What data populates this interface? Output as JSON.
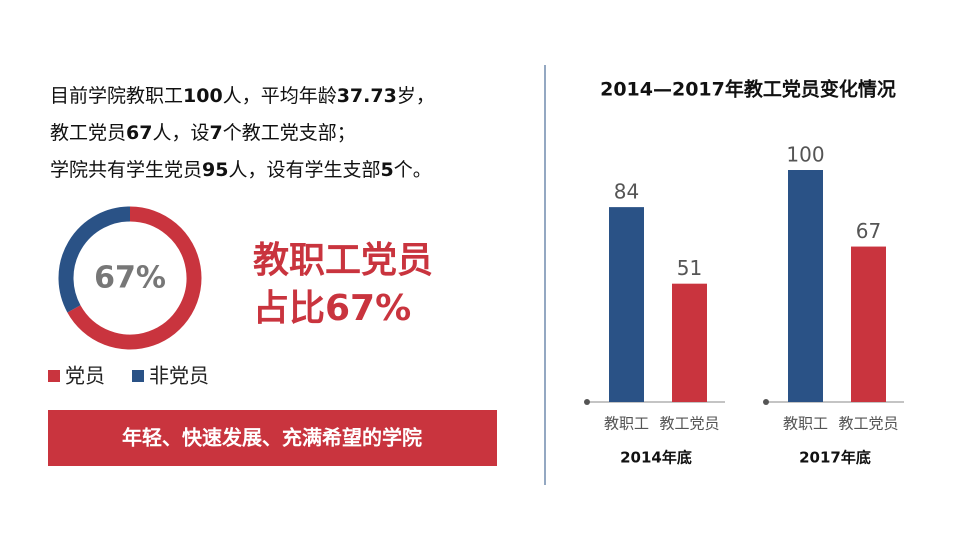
{
  "intro": [
    [
      "目前学院教职工",
      "100",
      "人，平均年龄",
      "37.73",
      "岁，"
    ],
    [
      "教工党员",
      "67",
      "人，设",
      "7",
      "个教工党支部；"
    ],
    [
      "学院共有学生党员",
      "95",
      "人，设有学生支部",
      "5",
      "个。"
    ]
  ],
  "chart_data": [
    {
      "type": "donut",
      "categories": [
        "党员",
        "非党员"
      ],
      "values": [
        67,
        33
      ],
      "colors": [
        "#c9343e",
        "#2a5286"
      ],
      "center_label": "67%",
      "annotation": [
        "教职工党员",
        "占比67%"
      ]
    },
    {
      "type": "bar",
      "title": "2014—2017年教工党员变化情况",
      "categories": [
        "2014年底",
        "2017年底"
      ],
      "series": [
        {
          "name": "教职工",
          "color": "#2a5286",
          "values": [
            84,
            100
          ]
        },
        {
          "name": "教工党员",
          "color": "#c9343e",
          "values": [
            51,
            67
          ]
        }
      ],
      "ylim": [
        0,
        100
      ]
    }
  ],
  "banner": "年轻、快速发展、充满希望的学院"
}
